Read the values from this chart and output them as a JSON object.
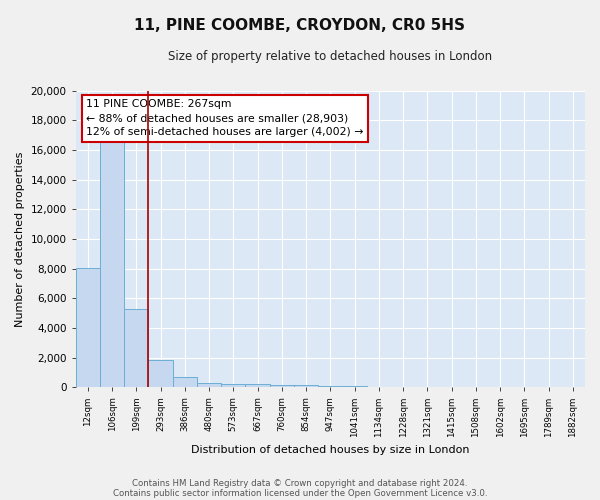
{
  "title": "11, PINE COOMBE, CROYDON, CR0 5HS",
  "subtitle": "Size of property relative to detached houses in London",
  "xlabel": "Distribution of detached houses by size in London",
  "ylabel": "Number of detached properties",
  "footnote1": "Contains HM Land Registry data © Crown copyright and database right 2024.",
  "footnote2": "Contains public sector information licensed under the Open Government Licence v3.0.",
  "annotation_line1": "11 PINE COOMBE: 267sqm",
  "annotation_line2": "← 88% of detached houses are smaller (28,903)",
  "annotation_line3": "12% of semi-detached houses are larger (4,002) →",
  "bar_labels": [
    "12sqm",
    "106sqm",
    "199sqm",
    "293sqm",
    "386sqm",
    "480sqm",
    "573sqm",
    "667sqm",
    "760sqm",
    "854sqm",
    "947sqm",
    "1041sqm",
    "1134sqm",
    "1228sqm",
    "1321sqm",
    "1415sqm",
    "1508sqm",
    "1602sqm",
    "1695sqm",
    "1789sqm",
    "1882sqm"
  ],
  "bar_values": [
    8050,
    16500,
    5300,
    1850,
    700,
    320,
    220,
    190,
    170,
    130,
    80,
    60,
    50,
    40,
    35,
    30,
    25,
    20,
    15,
    12,
    10
  ],
  "bar_color": "#c5d8f0",
  "bar_edge_color": "#6baed6",
  "vline_x": 2.5,
  "vline_color": "#aa0000",
  "ylim": [
    0,
    20000
  ],
  "yticks": [
    0,
    2000,
    4000,
    6000,
    8000,
    10000,
    12000,
    14000,
    16000,
    18000,
    20000
  ],
  "fig_bg": "#f0f0f0",
  "plot_bg": "#dce8f5",
  "grid_color": "#ffffff",
  "annotation_box_fc": "#ffffff",
  "annotation_box_ec": "#cc0000"
}
